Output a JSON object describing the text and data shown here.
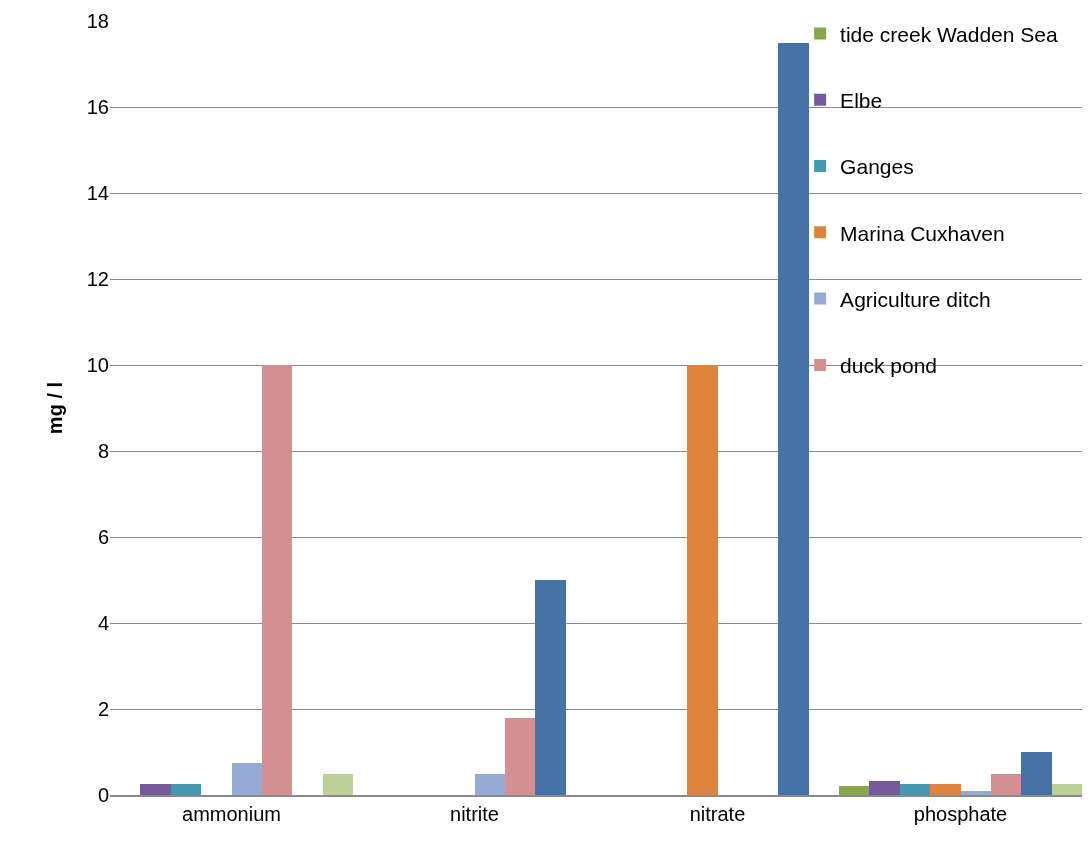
{
  "chart_data": {
    "type": "bar",
    "ylabel": "mg / l",
    "categories": [
      "ammonium",
      "nitrite",
      "nitrate",
      "phosphate"
    ],
    "series": [
      {
        "name": "tide creek Wadden Sea",
        "color": "#8aa64a",
        "values": [
          null,
          null,
          null,
          0.2
        ]
      },
      {
        "name": "Elbe",
        "color": "#775a9b",
        "values": [
          0.25,
          null,
          null,
          0.33
        ]
      },
      {
        "name": "Ganges",
        "color": "#4299b0",
        "values": [
          0.25,
          null,
          null,
          0.25
        ]
      },
      {
        "name": "Marina Cuxhaven",
        "color": "#dd843e",
        "values": [
          null,
          null,
          10,
          0.25
        ]
      },
      {
        "name": "Agriculture ditch",
        "color": "#95abd4",
        "values": [
          0.75,
          0.5,
          null,
          0.1
        ]
      },
      {
        "name": "duck pond",
        "color": "#d39090",
        "values": [
          10,
          1.8,
          null,
          0.5
        ]
      },
      {
        "color": "#4573a7",
        "values": [
          null,
          5,
          17.5,
          1
        ]
      },
      {
        "color": "#bbd197",
        "values": [
          0.5,
          null,
          null,
          0.25
        ]
      }
    ],
    "ylim": [
      0,
      18
    ],
    "yticks": [
      0,
      2,
      4,
      6,
      8,
      10,
      12,
      14,
      16,
      18
    ],
    "grid": "y",
    "legend": "top right"
  }
}
